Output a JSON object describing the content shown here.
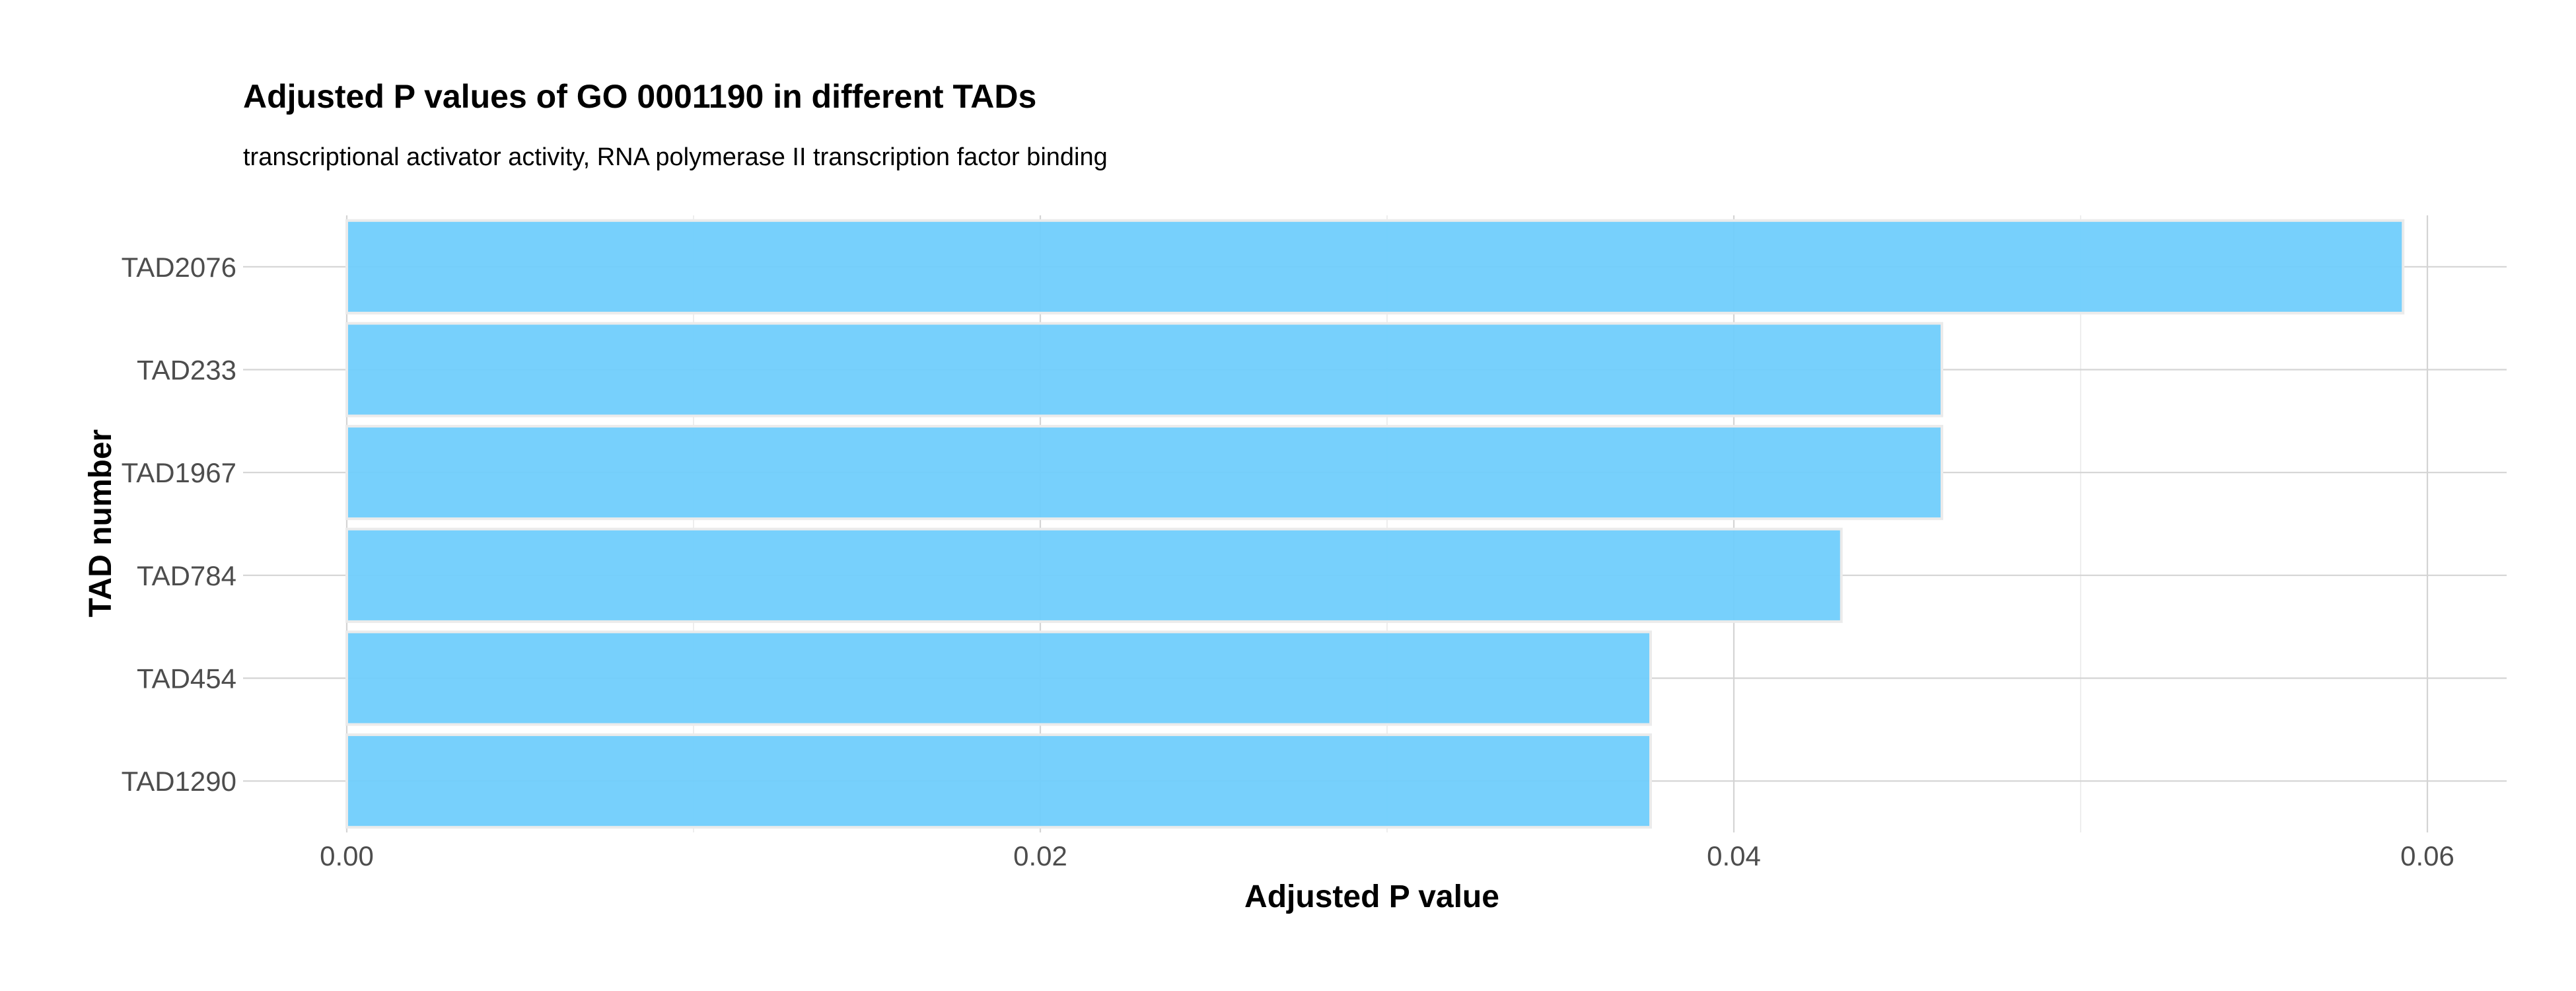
{
  "chart_data": {
    "type": "bar",
    "orientation": "horizontal",
    "title": "Adjusted P values of GO 0001190 in different TADs",
    "subtitle": "transcriptional activator activity, RNA polymerase II transcription factor binding",
    "xlabel": "Adjusted P value",
    "ylabel": "TAD number",
    "categories": [
      "TAD2076",
      "TAD233",
      "TAD1967",
      "TAD784",
      "TAD454",
      "TAD1290"
    ],
    "values": [
      0.0593,
      0.046,
      0.046,
      0.0431,
      0.0376,
      0.0376
    ],
    "xlim": [
      0,
      0.062
    ],
    "x_ticks": [
      0.0,
      0.02,
      0.04,
      0.06
    ],
    "x_tick_labels": [
      "0.00",
      "0.02",
      "0.04",
      "0.06"
    ],
    "grid": true,
    "legend": "none",
    "colors": {
      "bar_fill": "#70cdfc",
      "bar_outline": "#ebebeb",
      "grid": "#d4d4d4"
    }
  }
}
